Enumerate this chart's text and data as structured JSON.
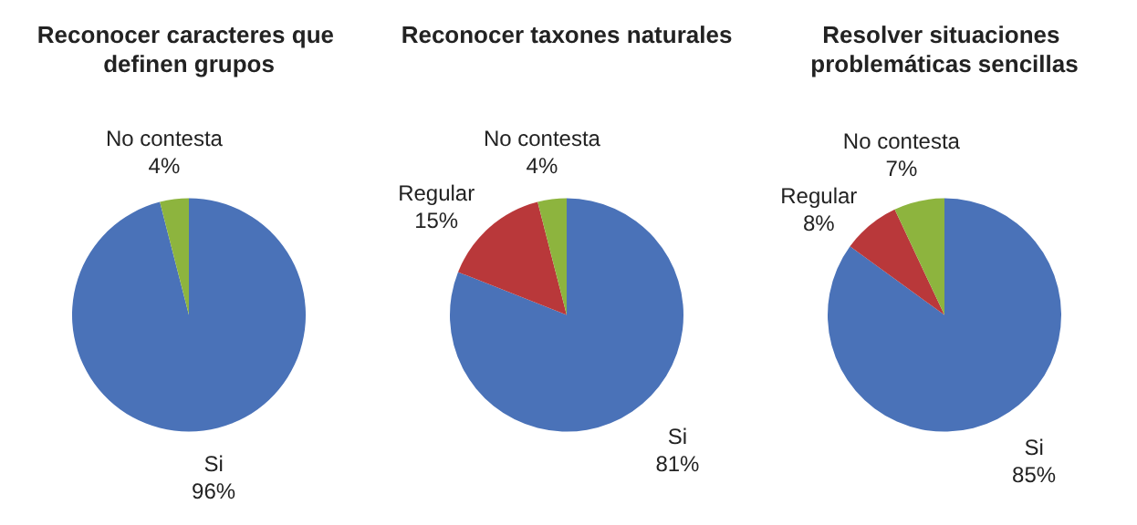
{
  "chart_data": [
    {
      "type": "pie",
      "title": "Reconocer caracteres que definen grupos",
      "categories": [
        "Si",
        "No contesta"
      ],
      "values": [
        96,
        4
      ],
      "colors": [
        "#4a72b8",
        "#8db43e"
      ],
      "value_labels": [
        "96%",
        "4%"
      ]
    },
    {
      "type": "pie",
      "title": "Reconocer taxones naturales",
      "categories": [
        "Si",
        "Regular",
        "No contesta"
      ],
      "values": [
        81,
        15,
        4
      ],
      "colors": [
        "#4a72b8",
        "#b9383a",
        "#8db43e"
      ],
      "value_labels": [
        "81%",
        "15%",
        "4%"
      ]
    },
    {
      "type": "pie",
      "title": "Resolver situaciones problemáticas sencillas",
      "categories": [
        "Si",
        "Regular",
        "No contesta"
      ],
      "values": [
        85,
        8,
        7
      ],
      "colors": [
        "#4a72b8",
        "#b9383a",
        "#8db43e"
      ],
      "value_labels": [
        "85%",
        "8%",
        "7%"
      ]
    }
  ]
}
